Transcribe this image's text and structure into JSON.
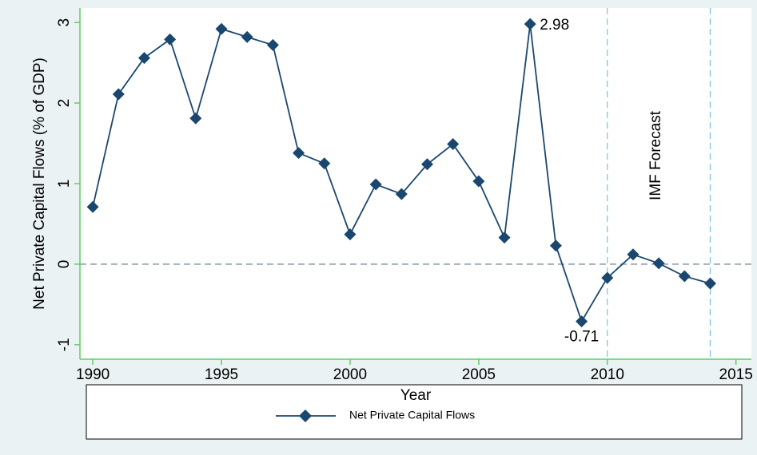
{
  "chart_data": {
    "type": "line",
    "x_label": "Year",
    "y_label": "Net Private Capital Flows (% of GDP)",
    "x": [
      1990,
      1991,
      1992,
      1993,
      1994,
      1995,
      1996,
      1997,
      1998,
      1999,
      2000,
      2001,
      2002,
      2003,
      2004,
      2005,
      2006,
      2007,
      2008,
      2009,
      2010,
      2011,
      2012,
      2013,
      2014
    ],
    "series": [
      {
        "name": "Net Private Capital Flows",
        "color": "#1a476f",
        "values": [
          0.71,
          2.11,
          2.56,
          2.79,
          1.81,
          2.92,
          2.82,
          2.72,
          1.38,
          1.25,
          0.37,
          0.99,
          0.87,
          1.24,
          1.49,
          1.03,
          0.33,
          2.98,
          0.23,
          -0.71,
          -0.17,
          0.12,
          0.01,
          -0.15,
          -0.24
        ],
        "value_labels": [
          null,
          null,
          null,
          null,
          null,
          null,
          null,
          null,
          null,
          null,
          null,
          null,
          null,
          null,
          null,
          null,
          null,
          "2.98",
          null,
          "-0.71",
          null,
          null,
          null,
          null,
          null
        ]
      }
    ],
    "xlim": [
      1989.5,
      2015.6
    ],
    "xticks": [
      1990,
      1995,
      2000,
      2005,
      2010,
      2015
    ],
    "ylim": [
      -1.18,
      3.18
    ],
    "yticks": [
      -1,
      0,
      1,
      2,
      3
    ],
    "hlines": [
      0
    ],
    "vlines": [
      2010,
      2014
    ],
    "annotation": "IMF Forecast",
    "legend": "bottom"
  }
}
